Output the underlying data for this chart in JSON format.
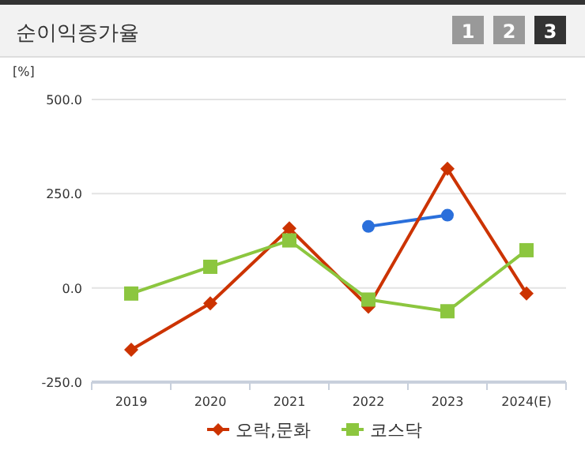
{
  "chart_data": {
    "type": "line",
    "title": "순이익증가율",
    "ylabel": "[%]",
    "annotations": [
      "1",
      "2",
      "3"
    ],
    "categories": [
      "2019",
      "2020",
      "2021",
      "2022",
      "2023",
      "2024(E)"
    ],
    "series": [
      {
        "color": "#2a6fdb",
        "marker": "circle",
        "values": [
          null,
          null,
          null,
          163,
          193,
          null
        ]
      },
      {
        "name": "오락,문화",
        "color": "#cc3300",
        "marker": "diamond",
        "values": [
          -164,
          -41,
          158,
          -50,
          316,
          -15
        ]
      },
      {
        "name": "코스닥",
        "color": "#8cc63f",
        "marker": "square",
        "values": [
          -15,
          56,
          126,
          -31,
          -62,
          100
        ]
      }
    ],
    "ylim": [
      -250,
      500
    ],
    "yticks": [
      {
        "value": -250,
        "label": "-250.0"
      },
      {
        "value": 0,
        "label": "0.0"
      },
      {
        "value": 250,
        "label": "250.0"
      },
      {
        "value": 500,
        "label": "500.0"
      }
    ],
    "grid": "y",
    "legend": "bottom"
  }
}
